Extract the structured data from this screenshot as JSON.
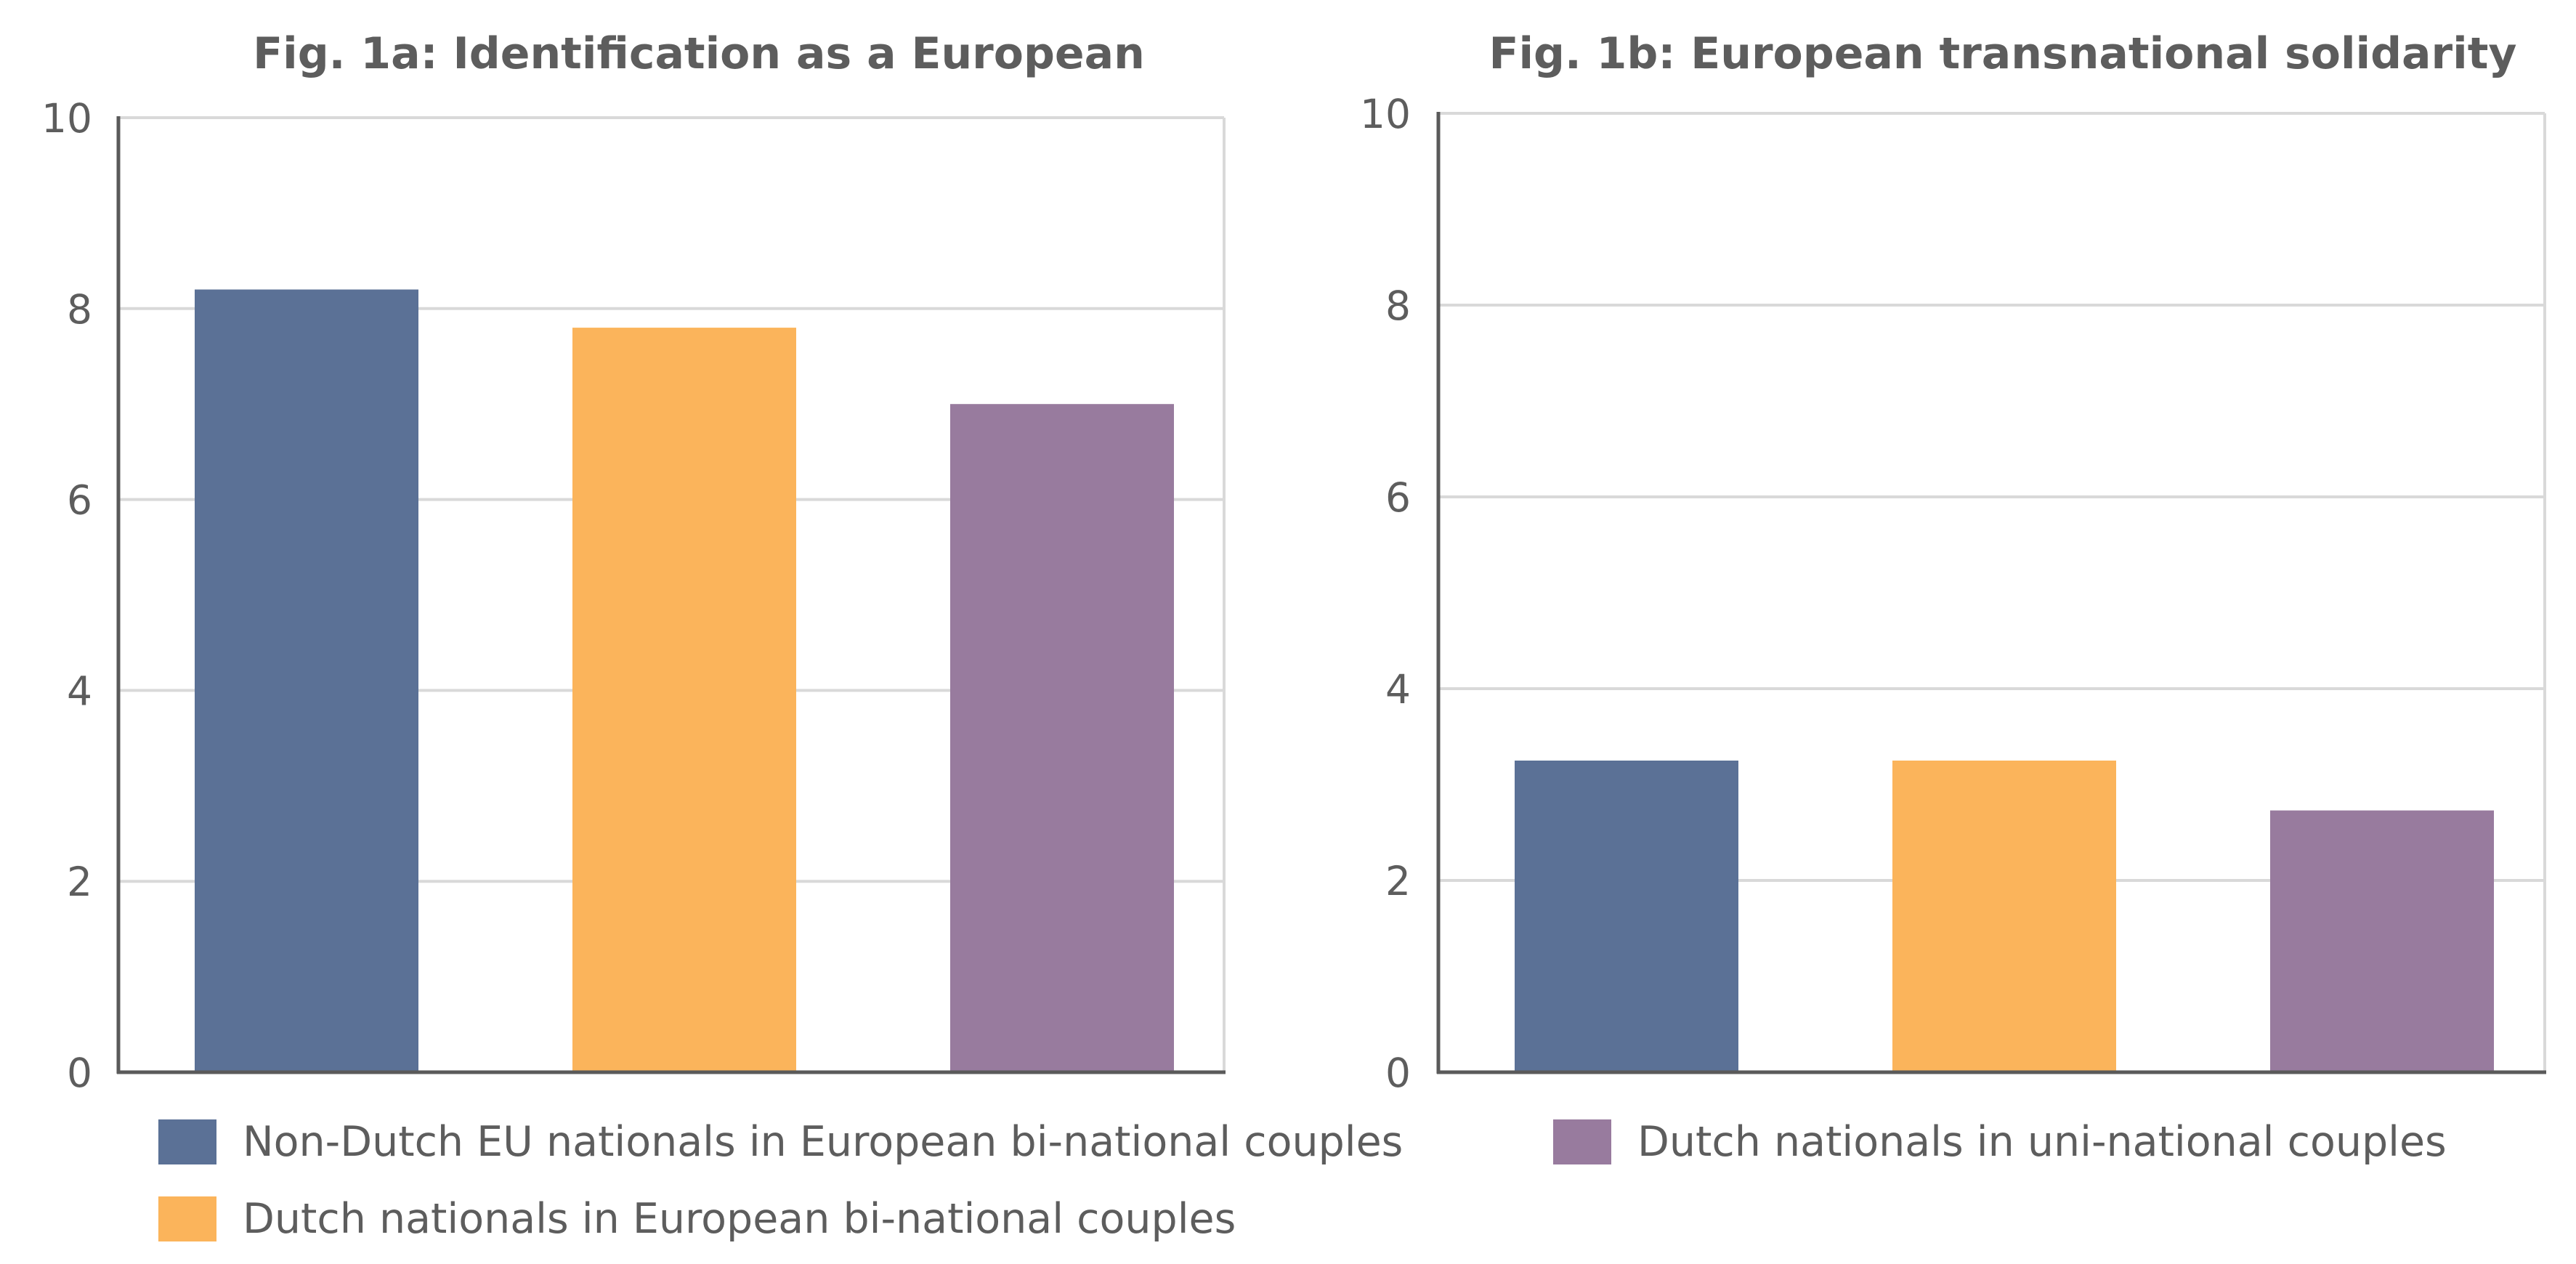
{
  "chart_data": [
    {
      "type": "bar",
      "title": "Fig. 1a: Identification as a European",
      "ylim": [
        0,
        10
      ],
      "yticks": [
        0,
        2,
        4,
        6,
        8,
        10
      ],
      "grid": true,
      "series": [
        {
          "name": "Non-Dutch EU nationals in European bi-national couples",
          "values": [
            8.2
          ]
        },
        {
          "name": "Dutch nationals in European bi-national couples",
          "values": [
            7.8
          ]
        },
        {
          "name": "Dutch nationals in uni-national couples",
          "values": [
            7.0
          ]
        }
      ]
    },
    {
      "type": "bar",
      "title": "Fig. 1b: European transnational solidarity",
      "ylim": [
        0,
        10
      ],
      "yticks": [
        0,
        2,
        4,
        6,
        8,
        10
      ],
      "grid": true,
      "series": [
        {
          "name": "Non-Dutch EU nationals in European bi-national couples",
          "values": [
            3.25
          ]
        },
        {
          "name": "Dutch nationals in European bi-national couples",
          "values": [
            3.25
          ]
        },
        {
          "name": "Dutch nationals in uni-national couples",
          "values": [
            2.73
          ]
        }
      ]
    }
  ],
  "colors": [
    "#5b7196",
    "#fbb45b",
    "#987b9e"
  ],
  "legend": {
    "placement": "bottom",
    "items": [
      {
        "label": "Non-Dutch EU nationals in European bi-national couples",
        "color": "#5b7196"
      },
      {
        "label": "Dutch nationals in uni-national couples",
        "color": "#987b9e"
      },
      {
        "label": "Dutch nationals in European bi-national couples",
        "color": "#fbb45b"
      }
    ]
  }
}
